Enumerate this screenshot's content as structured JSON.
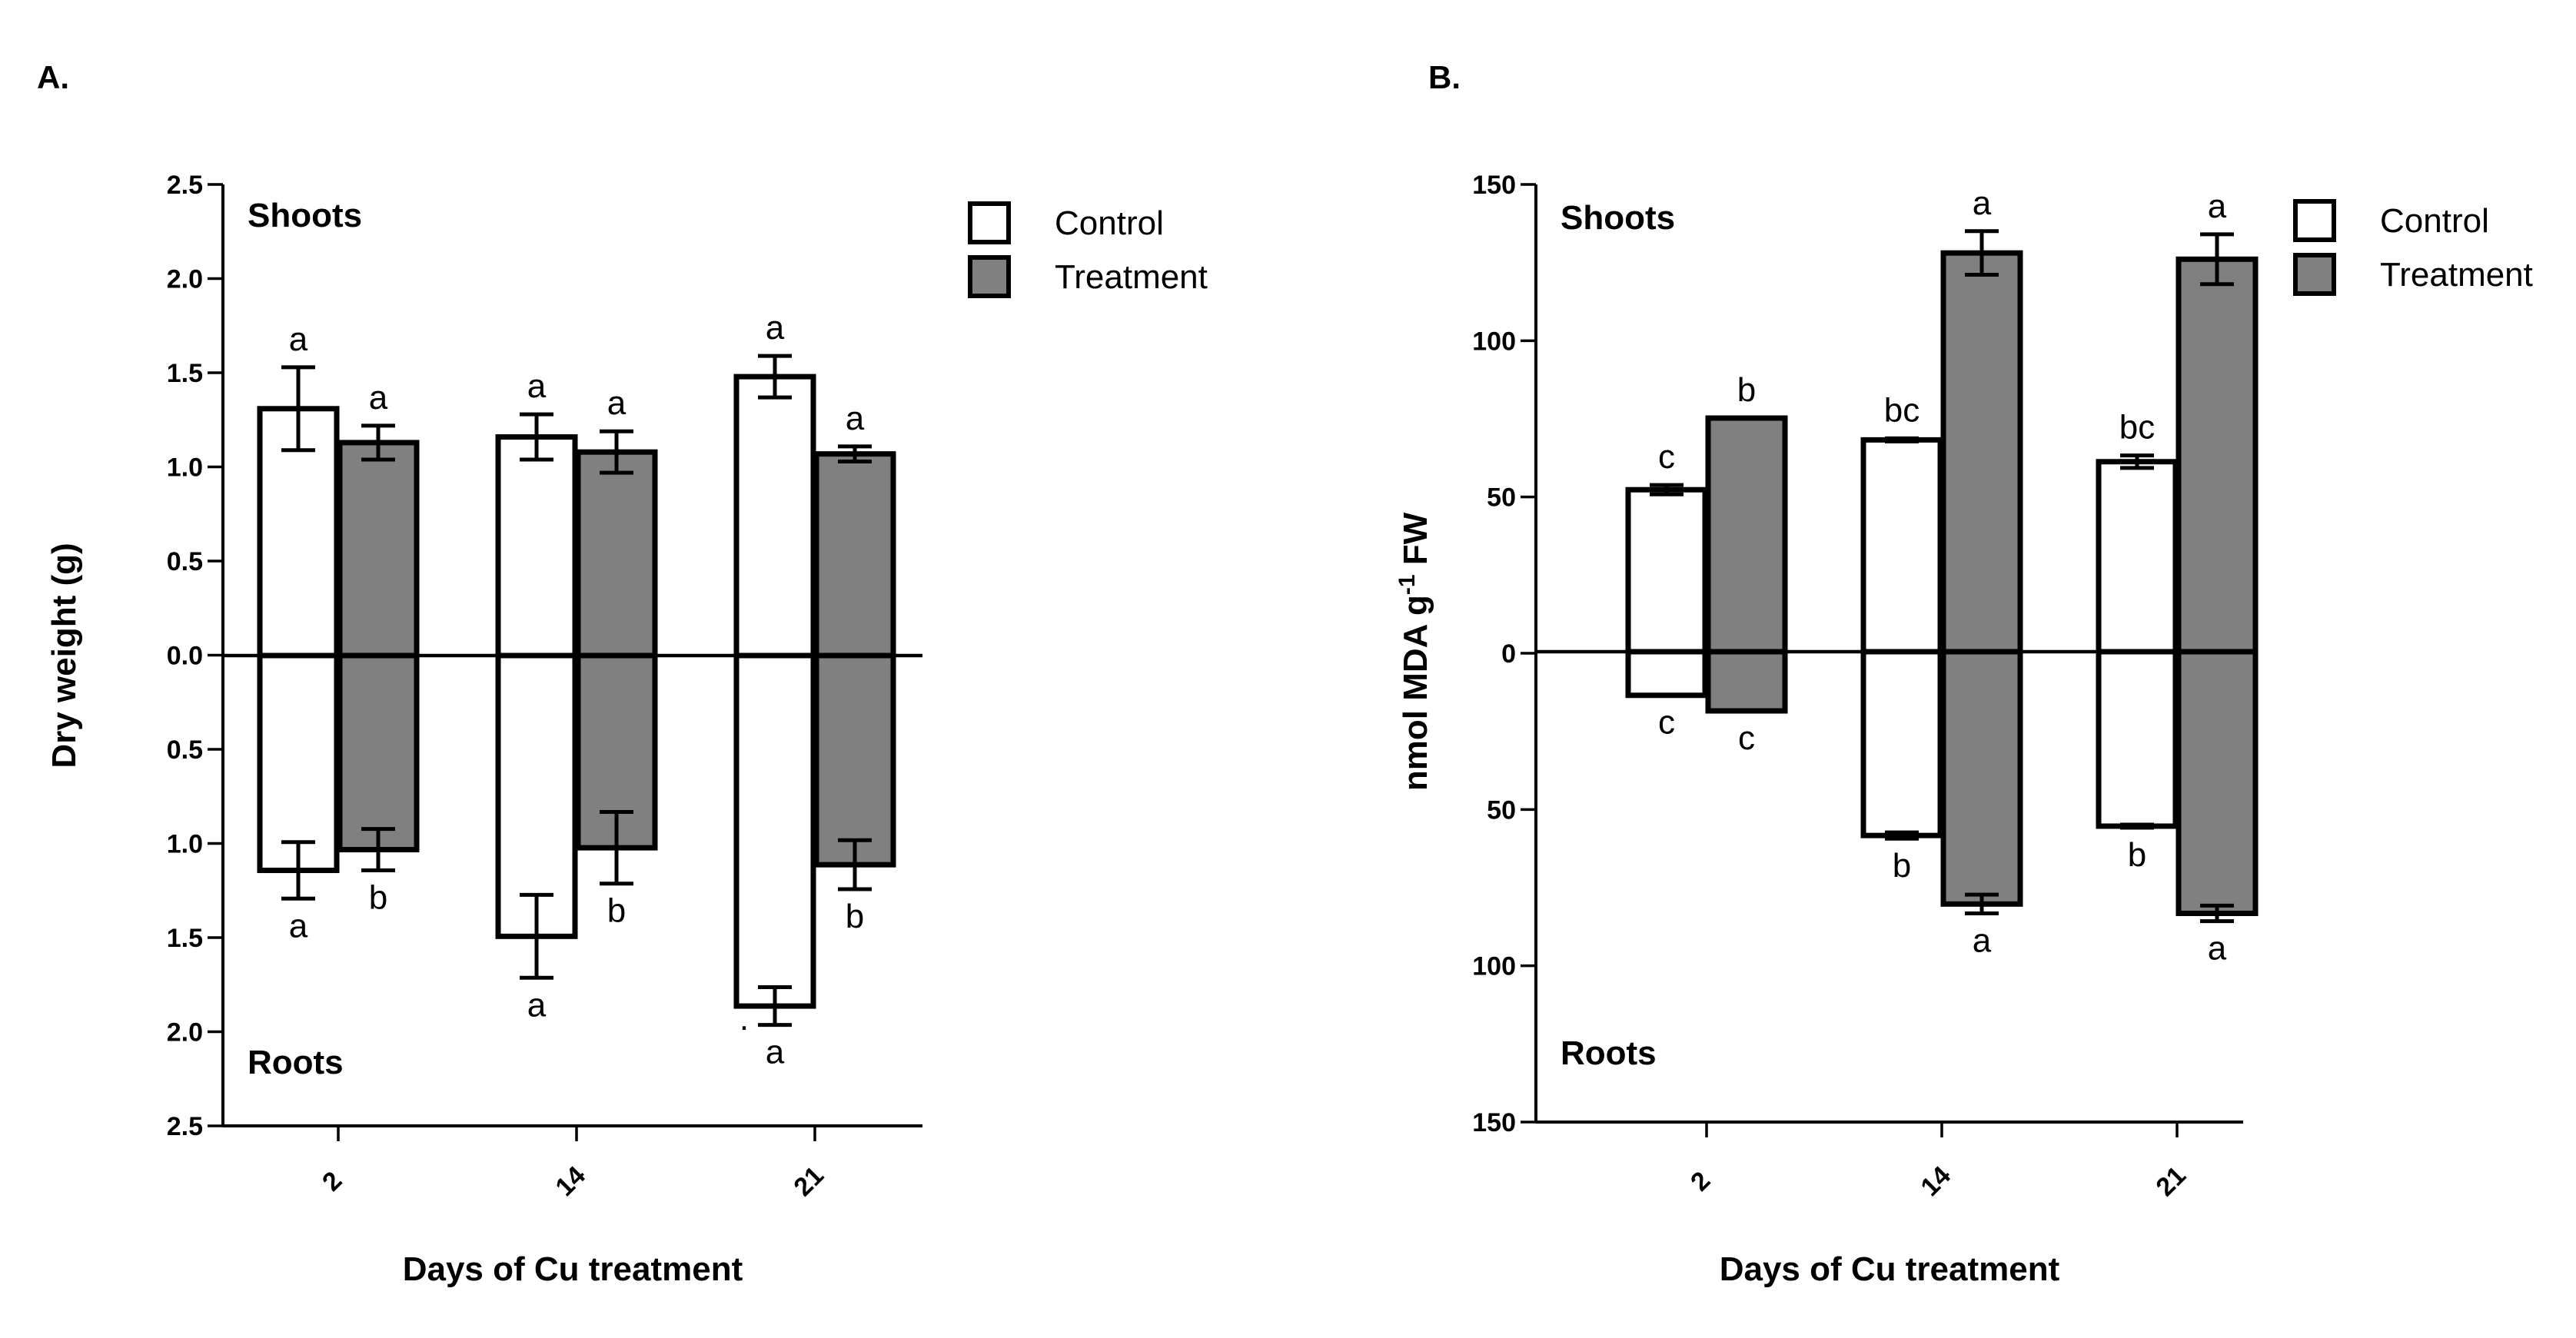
{
  "chart_data": [
    {
      "panel": "A.",
      "type": "bar",
      "ylabel": "Dry weight (g)",
      "xlabel": "Days of Cu treatment",
      "categories": [
        "2",
        "14",
        "21"
      ],
      "y_ticks": [
        2.5,
        2.0,
        1.5,
        1.0,
        0.5,
        0.0,
        0.5,
        1.0,
        1.5,
        2.0,
        2.5
      ],
      "y_tick_labels": [
        "2.5",
        "2.0",
        "1.5",
        "1.0",
        "0.5",
        "0.0",
        "0.5",
        "1.0",
        "1.5",
        "2.0",
        "2.5"
      ],
      "ylim": [
        -2.5,
        2.5
      ],
      "top_section_label": "Shoots",
      "bottom_section_label": "Roots",
      "legend_position": "top-right",
      "series": [
        {
          "name": "Control",
          "color": "#ffffff",
          "shoots": [
            1.31,
            1.16,
            1.48
          ],
          "shoots_error": [
            0.22,
            0.12,
            0.11
          ],
          "shoots_sig": [
            "a",
            "a",
            "a"
          ],
          "roots": [
            1.14,
            1.49,
            1.86
          ],
          "roots_error": [
            0.15,
            0.22,
            0.1
          ],
          "roots_sig": [
            "a",
            "a",
            "a"
          ]
        },
        {
          "name": "Treatment",
          "color": "#808080",
          "shoots": [
            1.13,
            1.08,
            1.07
          ],
          "shoots_error": [
            0.09,
            0.11,
            0.04
          ],
          "shoots_sig": [
            "a",
            "a",
            "a"
          ],
          "roots": [
            1.03,
            1.02,
            1.11
          ],
          "roots_error": [
            0.11,
            0.19,
            0.13
          ],
          "roots_sig": [
            "b",
            "b",
            "b"
          ]
        }
      ],
      "annotations": [
        "."
      ]
    },
    {
      "panel": "B.",
      "type": "bar",
      "ylabel_prefix": "nmol MDA g",
      "ylabel_superscript": "-1",
      "ylabel_suffix": " FW",
      "xlabel": "Days of Cu treatment",
      "categories": [
        "2",
        "14",
        "21"
      ],
      "y_ticks": [
        150,
        100,
        50,
        0,
        50,
        100,
        150
      ],
      "y_tick_labels": [
        "150",
        "100",
        "50",
        "0",
        "50",
        "100",
        "150"
      ],
      "ylim": [
        -150,
        150
      ],
      "top_section_label": "Shoots",
      "bottom_section_label": "Roots",
      "legend_position": "top-right",
      "series": [
        {
          "name": "Control",
          "color": "#ffffff",
          "shoots": [
            52,
            68,
            61
          ],
          "shoots_error": [
            1.5,
            0.5,
            2
          ],
          "shoots_sig": [
            "c",
            "bc",
            "bc"
          ],
          "roots": [
            14,
            59,
            56
          ],
          "roots_error": [
            0,
            1,
            0.5
          ],
          "roots_sig": [
            "c",
            "b",
            "b"
          ]
        },
        {
          "name": "Treatment",
          "color": "#808080",
          "shoots": [
            75,
            128,
            126
          ],
          "shoots_error": [
            0,
            7,
            8
          ],
          "shoots_sig": [
            "b",
            "a",
            "a"
          ],
          "roots": [
            19,
            81,
            84
          ],
          "roots_error": [
            0,
            3,
            2.5
          ],
          "roots_sig": [
            "c",
            "a",
            "a"
          ]
        }
      ]
    }
  ]
}
